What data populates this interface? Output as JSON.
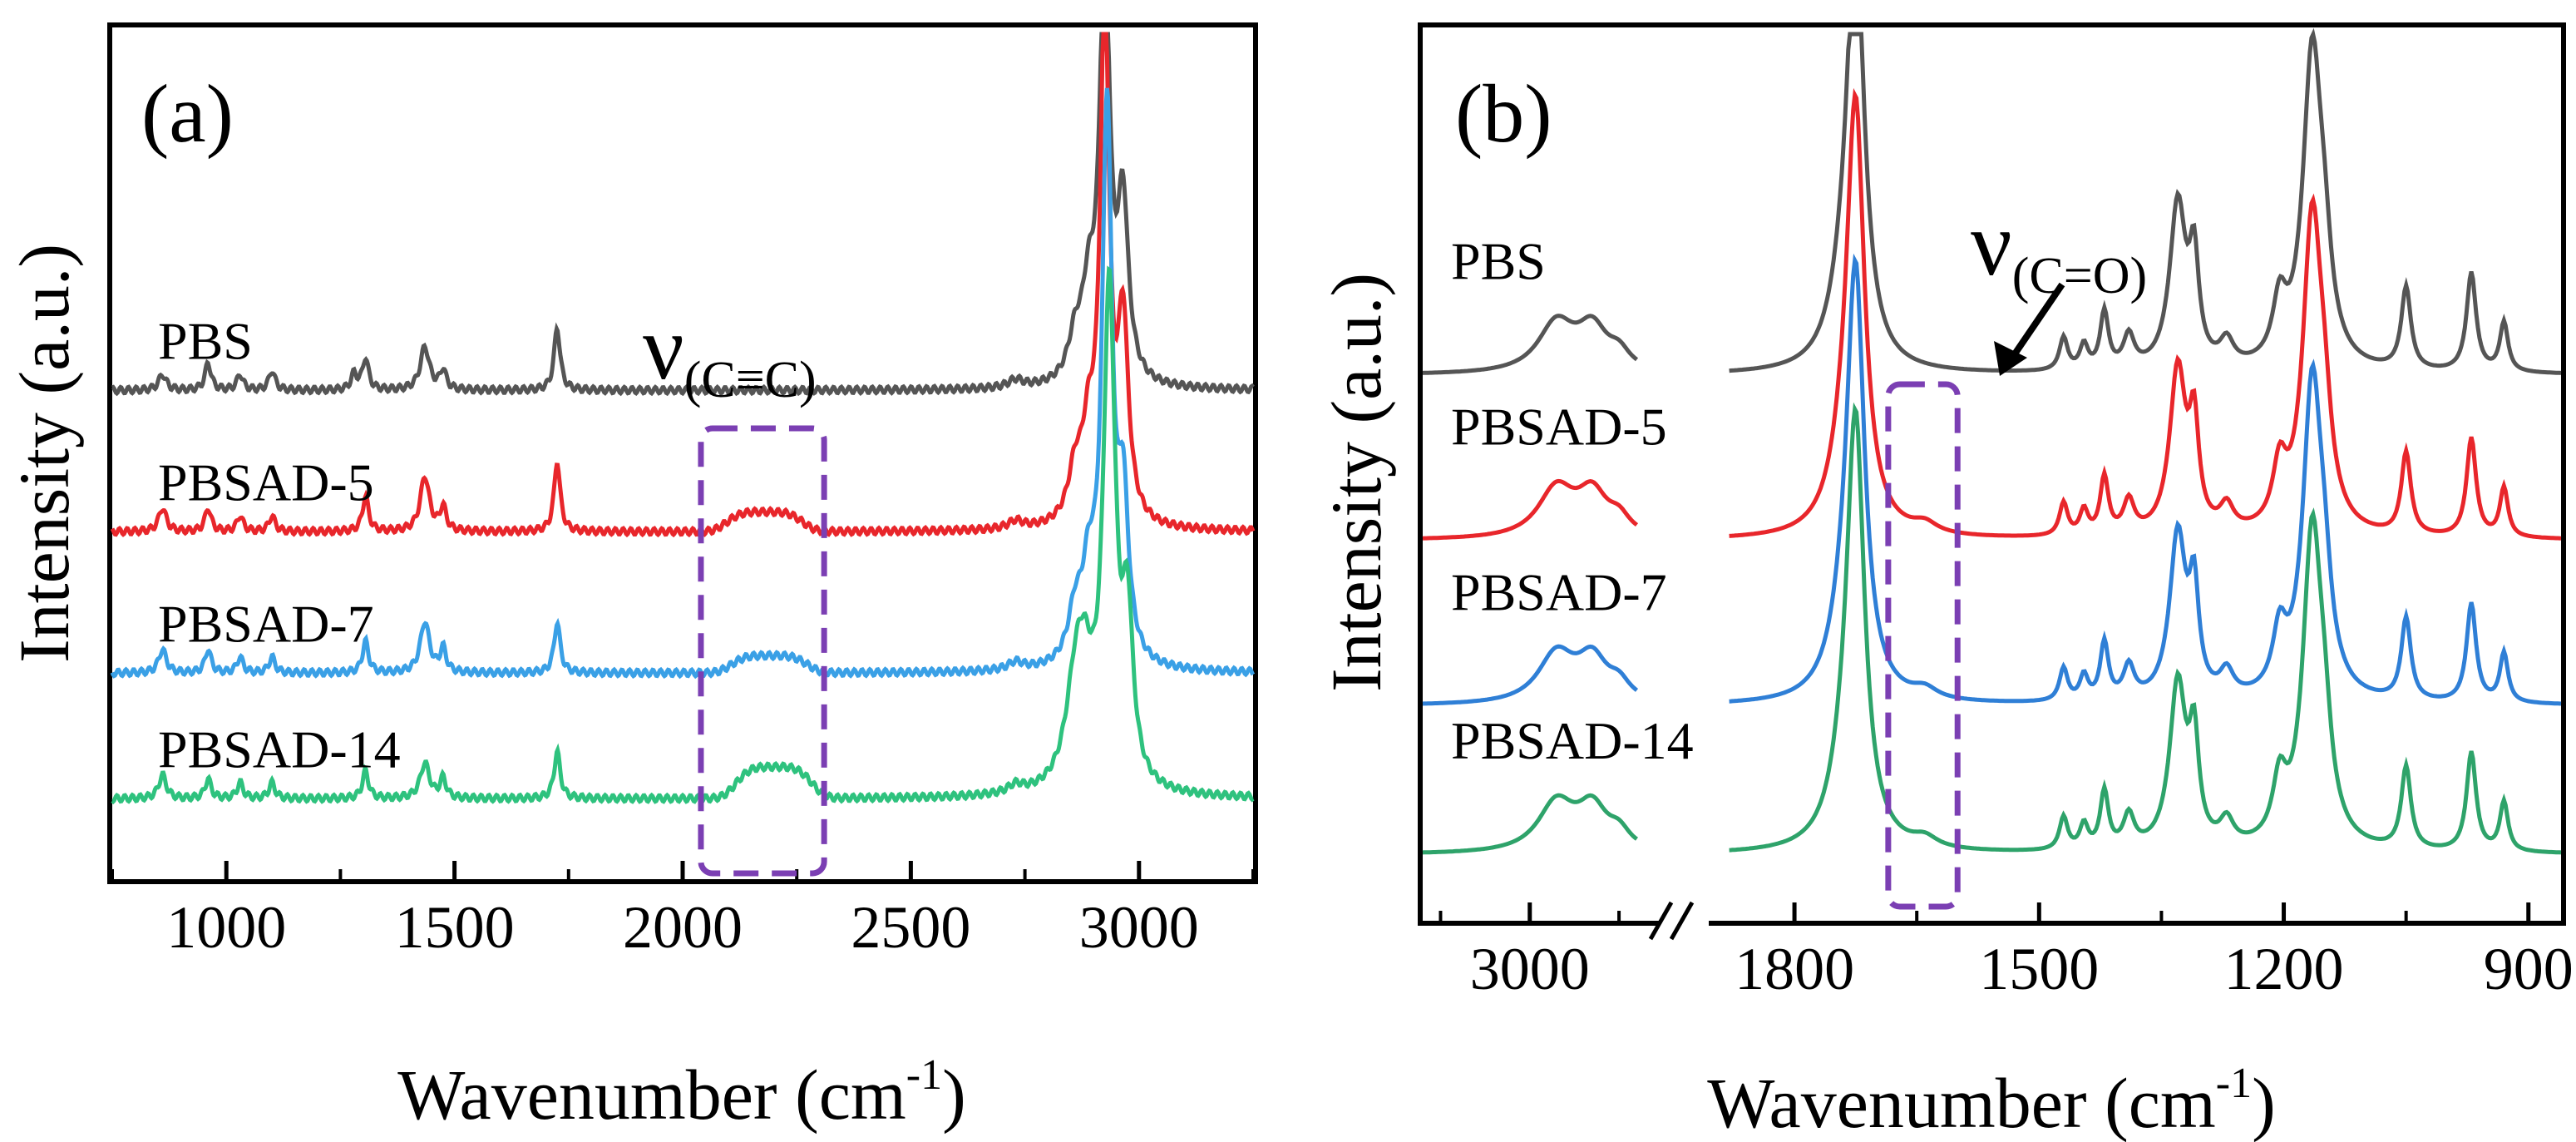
{
  "chart_data": [
    {
      "panel_label": "(a)",
      "type": "line",
      "xlabel": "Wavenumber (cm",
      "xlabel_sup": "-1",
      "xlabel_tail": ")",
      "ylabel": "Intensity (a.u.)",
      "xlim": [
        750,
        3250
      ],
      "xticks": [
        1000,
        1500,
        2000,
        2500,
        3000
      ],
      "xtick_labels": [
        "1000",
        "1500",
        "2000",
        "2500",
        "3000"
      ],
      "annotation": {
        "text": "ν",
        "sub": "(C≡C)",
        "x_range": [
          2040,
          2310
        ]
      },
      "series": [
        {
          "name": "PBS",
          "color": "#555555",
          "baseline": 0.58,
          "peaks": [
            [
              860,
              0.02,
              10
            ],
            [
              960,
              0.035,
              8
            ],
            [
              1030,
              0.02,
              8
            ],
            [
              1100,
              0.025,
              8
            ],
            [
              1280,
              0.02,
              8
            ],
            [
              1305,
              0.04,
              8
            ],
            [
              1435,
              0.055,
              12
            ],
            [
              1475,
              0.025,
              8
            ],
            [
              1725,
              0.08,
              8
            ],
            [
              2730,
              0.01,
              20
            ],
            [
              2860,
              0.05,
              18
            ],
            [
              2925,
              0.55,
              13
            ],
            [
              2965,
              0.22,
              14
            ],
            [
              2890,
              0.1,
              18
            ]
          ],
          "hump": null
        },
        {
          "name": "PBSAD-5",
          "color": "#e8262b",
          "baseline": 0.4,
          "peaks": [
            [
              860,
              0.03,
              10
            ],
            [
              960,
              0.03,
              8
            ],
            [
              1030,
              0.02,
              8
            ],
            [
              1100,
              0.02,
              8
            ],
            [
              1305,
              0.045,
              8
            ],
            [
              1435,
              0.07,
              12
            ],
            [
              1475,
              0.03,
              8
            ],
            [
              1725,
              0.09,
              8
            ],
            [
              2730,
              0.01,
              20
            ],
            [
              2860,
              0.06,
              18
            ],
            [
              2925,
              0.65,
              12
            ],
            [
              2965,
              0.25,
              14
            ],
            [
              2890,
              0.1,
              18
            ]
          ],
          "hump": [
            2180,
            0.025,
            90
          ]
        },
        {
          "name": "PBSAD-7",
          "color": "#3aa0e6",
          "baseline": 0.22,
          "peaks": [
            [
              860,
              0.03,
              10
            ],
            [
              960,
              0.03,
              8
            ],
            [
              1030,
              0.02,
              8
            ],
            [
              1100,
              0.02,
              8
            ],
            [
              1305,
              0.04,
              8
            ],
            [
              1435,
              0.065,
              12
            ],
            [
              1475,
              0.03,
              8
            ],
            [
              1725,
              0.065,
              8
            ],
            [
              2730,
              0.01,
              20
            ],
            [
              2860,
              0.06,
              18
            ],
            [
              2930,
              0.7,
              13
            ],
            [
              2965,
              0.2,
              14
            ],
            [
              2890,
              0.1,
              18
            ]
          ],
          "hump": [
            2190,
            0.022,
            90
          ]
        },
        {
          "name": "PBSAD-14",
          "color": "#2ec27e",
          "baseline": 0.06,
          "peaks": [
            [
              860,
              0.03,
              10
            ],
            [
              960,
              0.025,
              8
            ],
            [
              1030,
              0.02,
              8
            ],
            [
              1100,
              0.02,
              8
            ],
            [
              1305,
              0.035,
              8
            ],
            [
              1435,
              0.045,
              12
            ],
            [
              1475,
              0.025,
              8
            ],
            [
              1725,
              0.06,
              8
            ],
            [
              2730,
              0.01,
              20
            ],
            [
              2860,
              0.1,
              25
            ],
            [
              2935,
              0.62,
              16
            ],
            [
              2975,
              0.2,
              14
            ],
            [
              2880,
              0.12,
              25
            ]
          ],
          "hump": [
            2200,
            0.04,
            90
          ]
        }
      ]
    },
    {
      "panel_label": "(b)",
      "type": "line",
      "xlabel": "Wavenumber (cm",
      "xlabel_sup": "-1",
      "xlabel_tail": ")",
      "ylabel": "Intensity (a.u.)",
      "axis_break": true,
      "xlim_left": [
        3120,
        2860
      ],
      "xlim_right": [
        1900,
        860
      ],
      "xticks": [
        3000,
        1800,
        1500,
        1200,
        900
      ],
      "xtick_labels": [
        "3000",
        "1800",
        "1500",
        "1200",
        "900"
      ],
      "annotation": {
        "text": "ν",
        "sub": "(C=O)",
        "x_range": [
          1685,
          1600
        ]
      },
      "series": [
        {
          "name": "PBS",
          "color": "#555555",
          "baseline": 0.62
        },
        {
          "name": "PBSAD-5",
          "color": "#e8262b",
          "baseline": 0.42
        },
        {
          "name": "PBSAD-7",
          "color": "#2f7fd6",
          "baseline": 0.22
        },
        {
          "name": "PBSAD-14",
          "color": "#2ea36a",
          "baseline": 0.04
        }
      ],
      "peaks_common": [
        [
          1725,
          0.5,
          13
        ],
        [
          1740,
          0.06,
          20
        ],
        [
          1470,
          0.04,
          6
        ],
        [
          1445,
          0.03,
          6
        ],
        [
          1420,
          0.07,
          6
        ],
        [
          1390,
          0.04,
          8
        ],
        [
          1330,
          0.2,
          12
        ],
        [
          1310,
          0.12,
          7
        ],
        [
          1270,
          0.03,
          10
        ],
        [
          1205,
          0.07,
          10
        ],
        [
          1165,
          0.38,
          14
        ],
        [
          1150,
          0.08,
          10
        ],
        [
          1050,
          0.1,
          7
        ],
        [
          970,
          0.12,
          7
        ],
        [
          930,
          0.06,
          6
        ],
        [
          2970,
          0.06,
          25
        ],
        [
          2930,
          0.05,
          20
        ],
        [
          2900,
          0.02,
          15
        ]
      ]
    }
  ]
}
